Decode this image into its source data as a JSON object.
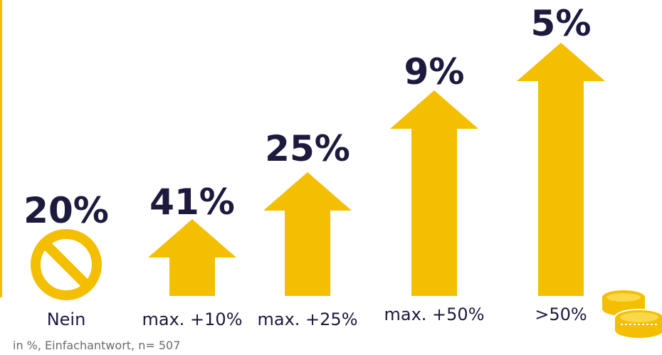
{
  "chart_data": {
    "type": "bar",
    "categories": [
      "Nein",
      "max. +10%",
      "max. +25%",
      "max. +50%",
      ">50%"
    ],
    "values": [
      20,
      41,
      25,
      9,
      5
    ],
    "value_labels": [
      "20%",
      "41%",
      "25%",
      "9%",
      "5%"
    ],
    "unit": "%",
    "title": "",
    "xlabel": "",
    "ylabel": ""
  },
  "footnote": "in %, Einfachantwort,  n= 507",
  "colors": {
    "accent": "#f3bf00",
    "text": "#1c1a3d",
    "footnote": "#6b6b6b"
  },
  "icons": [
    "no-sign-icon",
    "arrow-up-icon",
    "coins-icon"
  ]
}
